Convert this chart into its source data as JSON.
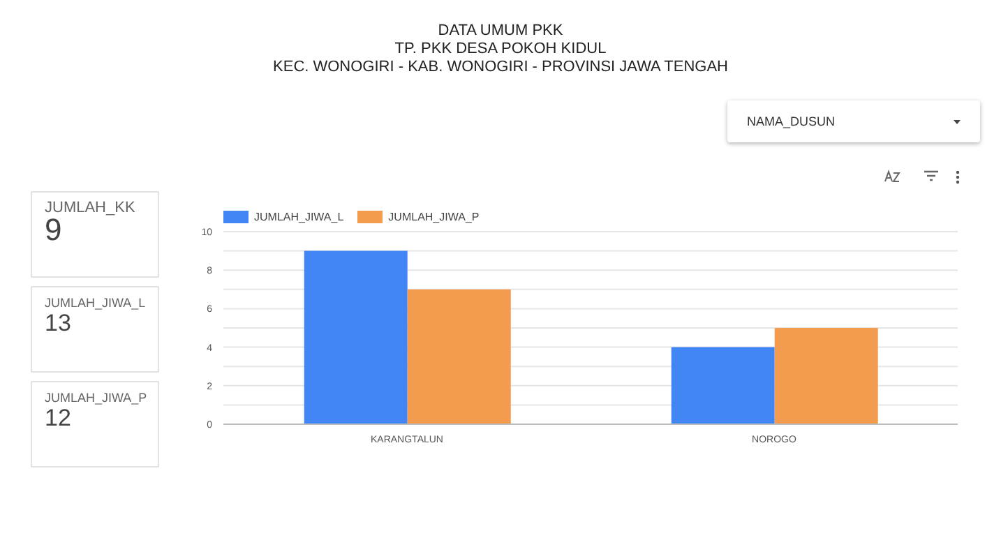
{
  "chart_data": {
    "type": "bar",
    "title": "DATA UMUM PKK",
    "subtitle": "TP. PKK DESA POKOH KIDUL\nKEC. WONOGIRI - KAB. WONOGIRI - PROVINSI JAWA TENGAH",
    "categories": [
      "KARANGTALUN",
      "NOROGO"
    ],
    "series": [
      {
        "name": "JUMLAH_JIWA_L",
        "color": "#4285f4",
        "values": [
          9,
          4
        ]
      },
      {
        "name": "JUMLAH_JIWA_P",
        "color": "#f39c4f",
        "values": [
          7,
          5
        ]
      }
    ],
    "ylim": [
      0,
      10
    ],
    "yticks": [
      0,
      {
        "value": 1,
        "label": null
      },
      2,
      {
        "value": 3,
        "label": null
      },
      4,
      {
        "value": 5,
        "label": null
      },
      6,
      {
        "value": 7,
        "label": null
      },
      8,
      {
        "value": 9,
        "label": null
      },
      10
    ],
    "grid": "y",
    "legend": "top left",
    "annotations": [
      "JUMLAH_KK",
      "9",
      "JUMLAH_JIWA_L",
      "13",
      "JUMLAH_JIWA_P",
      "12",
      "NAMA_DUSUN"
    ]
  }
}
